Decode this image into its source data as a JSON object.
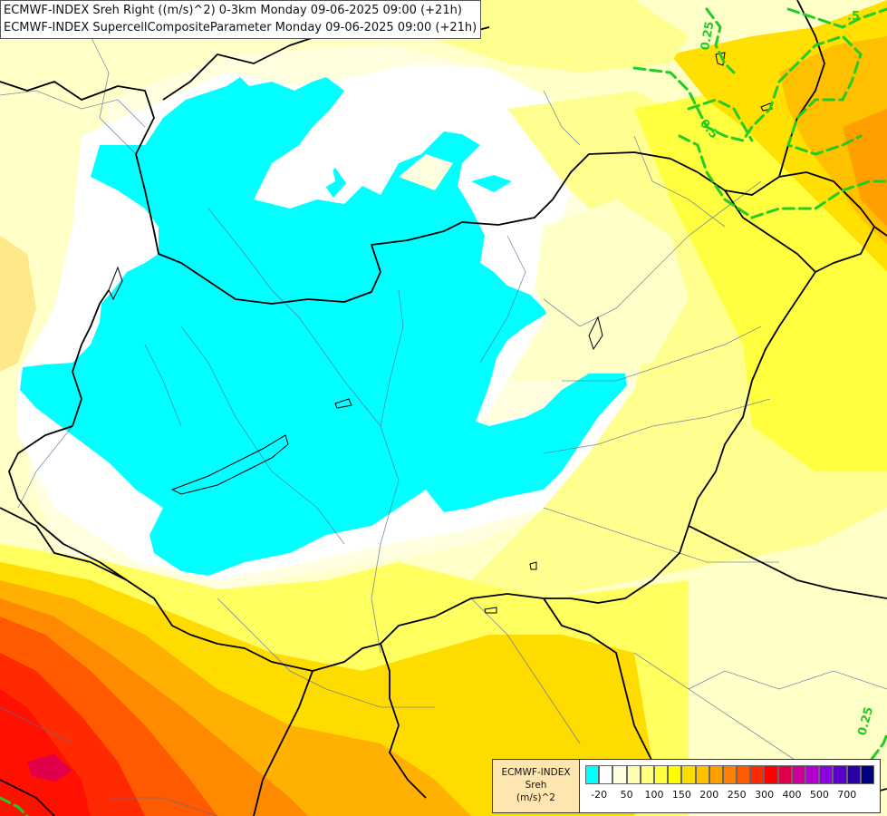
{
  "header": {
    "line1": "ECMWF-INDEX Sreh Right ((m/s)^2) 0-3km Monday 09-06-2025 09:00 (+21h)",
    "line2": "ECMWF-INDEX SupercellCompositeParameter Monday 09-06-2025 09:00 (+21h)"
  },
  "contour_labels": [
    {
      "text": "0.25",
      "name": "contour-label-025-top"
    },
    {
      "text": "0.5",
      "name": "contour-label-05-top"
    },
    {
      "text": ".5",
      "name": "contour-label-05-corner"
    },
    {
      "text": "0.25",
      "name": "contour-label-025-bottom"
    }
  ],
  "legend": {
    "label_lines": [
      "ECMWF-INDEX",
      "Sreh",
      "(m/s)^2"
    ],
    "colors": [
      "#00ffff",
      "#ffffff",
      "#ffffe0",
      "#ffffb4",
      "#ffff80",
      "#ffff40",
      "#ffff00",
      "#ffdc00",
      "#ffc000",
      "#ffa000",
      "#ff8000",
      "#ff5a00",
      "#ff2a00",
      "#ff0000",
      "#e0004a",
      "#cc0099",
      "#b000d0",
      "#8a00e0",
      "#5a00cc",
      "#2a00a0",
      "#000080"
    ],
    "ticks": [
      {
        "value": "-20",
        "index": 1
      },
      {
        "value": "50",
        "index": 3
      },
      {
        "value": "100",
        "index": 5
      },
      {
        "value": "150",
        "index": 7
      },
      {
        "value": "200",
        "index": 9
      },
      {
        "value": "250",
        "index": 11
      },
      {
        "value": "300",
        "index": 13
      },
      {
        "value": "400",
        "index": 15
      },
      {
        "value": "500",
        "index": 17
      },
      {
        "value": "700",
        "index": 19
      }
    ]
  }
}
